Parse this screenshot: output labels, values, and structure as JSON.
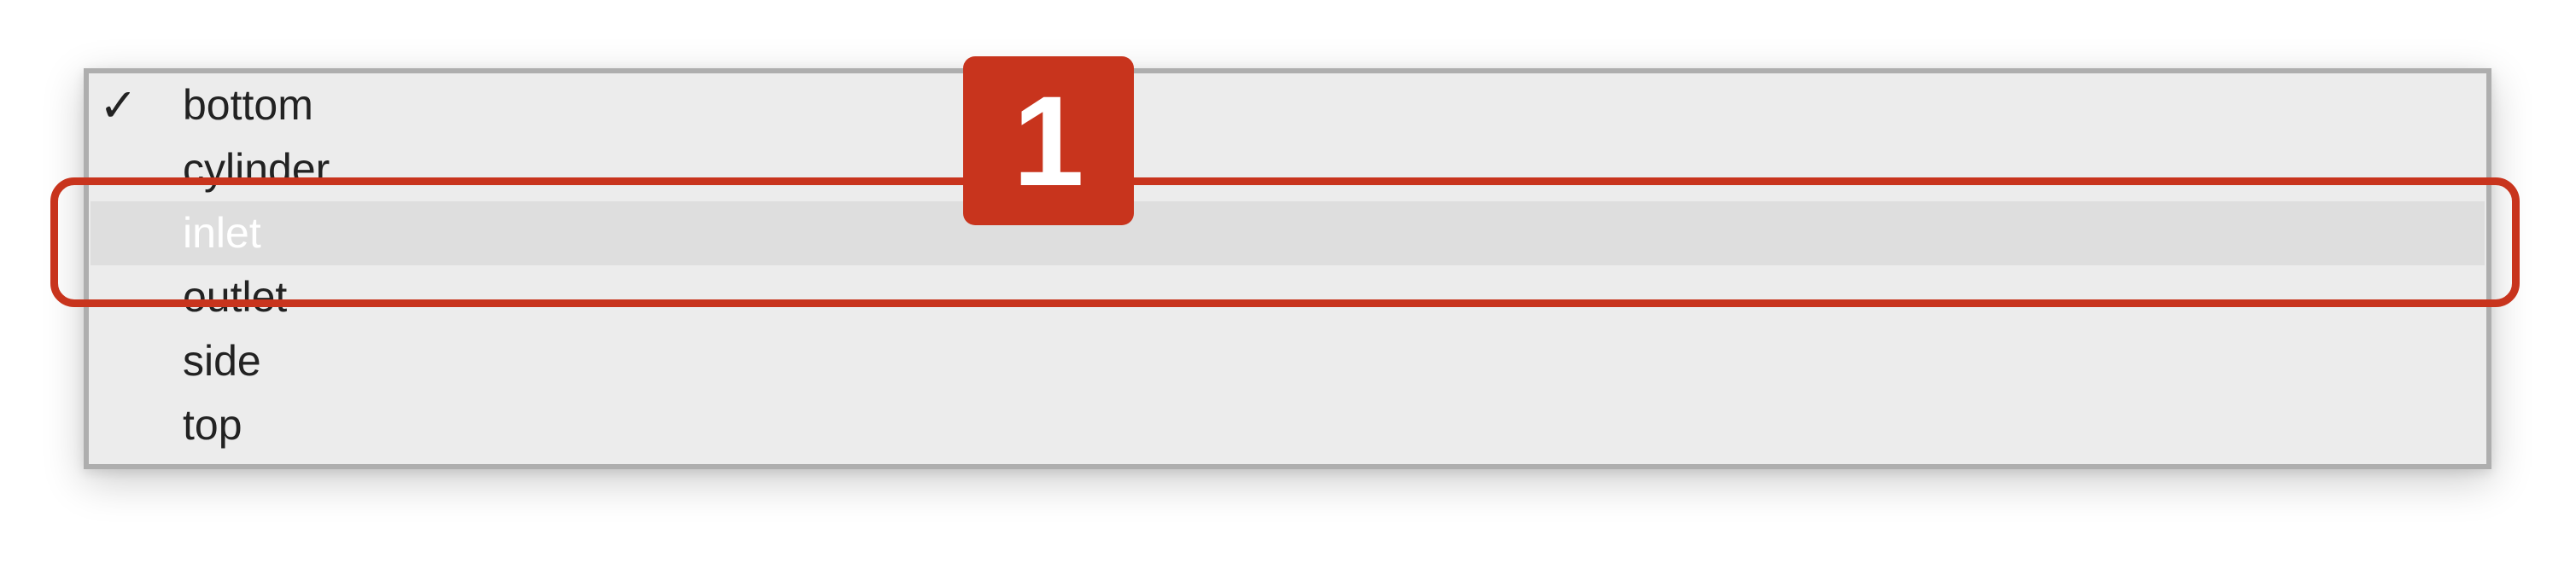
{
  "menu": {
    "items": [
      {
        "label": "bottom",
        "checked": true
      },
      {
        "label": "cylinder",
        "checked": false
      },
      {
        "label": "inlet",
        "checked": false,
        "highlighted": true
      },
      {
        "label": "outlet",
        "checked": false
      },
      {
        "label": "side",
        "checked": false
      },
      {
        "label": "top",
        "checked": false
      }
    ],
    "checkmark": "✓"
  },
  "annotation": {
    "step_number": "1",
    "color": "#c8341d"
  },
  "icons": {
    "check": "checkmark-icon"
  }
}
